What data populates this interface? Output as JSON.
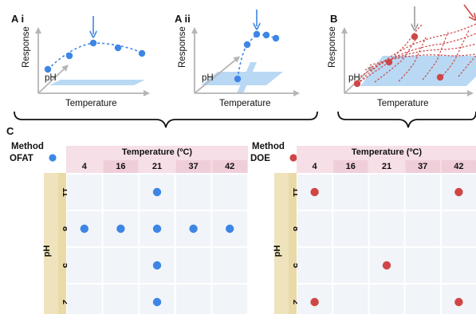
{
  "panels": {
    "ai": {
      "label": "A i",
      "y_label": "Response",
      "z_label": "pH",
      "x_label": "Temperature"
    },
    "aii": {
      "label": "A ii",
      "y_label": "Response",
      "z_label": "pH",
      "x_label": "Temperature"
    },
    "b": {
      "label": "B",
      "y_label": "Response",
      "z_label": "pH",
      "x_label": "Temperature"
    },
    "c": {
      "label": "C"
    }
  },
  "tables": [
    {
      "id": "ofat",
      "method_title": "Method",
      "method_name": "OFAT",
      "marker_color": "#3d86e6",
      "col_title": "Temperature (ºC)",
      "row_title": "pH",
      "columns": [
        "4",
        "16",
        "21",
        "37",
        "42"
      ],
      "rows": [
        "11",
        "8",
        "5",
        "2"
      ],
      "points": [
        {
          "temp": "21",
          "ph": "11"
        },
        {
          "temp": "4",
          "ph": "8"
        },
        {
          "temp": "16",
          "ph": "8"
        },
        {
          "temp": "21",
          "ph": "8"
        },
        {
          "temp": "37",
          "ph": "8"
        },
        {
          "temp": "42",
          "ph": "8"
        },
        {
          "temp": "21",
          "ph": "5"
        },
        {
          "temp": "21",
          "ph": "2"
        }
      ]
    },
    {
      "id": "doe",
      "method_title": "Method",
      "method_name": "DOE",
      "marker_color": "#cf4646",
      "col_title": "Temperature (ºC)",
      "row_title": "pH",
      "columns": [
        "4",
        "16",
        "21",
        "37",
        "42"
      ],
      "rows": [
        "11",
        "8",
        "5",
        "2"
      ],
      "points": [
        {
          "temp": "4",
          "ph": "11"
        },
        {
          "temp": "42",
          "ph": "11"
        },
        {
          "temp": "21",
          "ph": "5"
        },
        {
          "temp": "4",
          "ph": "2"
        },
        {
          "temp": "42",
          "ph": "2"
        }
      ]
    }
  ],
  "colors": {
    "blue": "#3d86e6",
    "red": "#cf4646",
    "plane": "#b9d8f3",
    "axis": "#b5b5b5",
    "header_pink": "#f6dfe6",
    "header_pink_dark": "#eec6d3",
    "row_tan": "#efe3bd",
    "row_tan_dark": "#e6d49a",
    "cell": "#f1f4f9"
  }
}
